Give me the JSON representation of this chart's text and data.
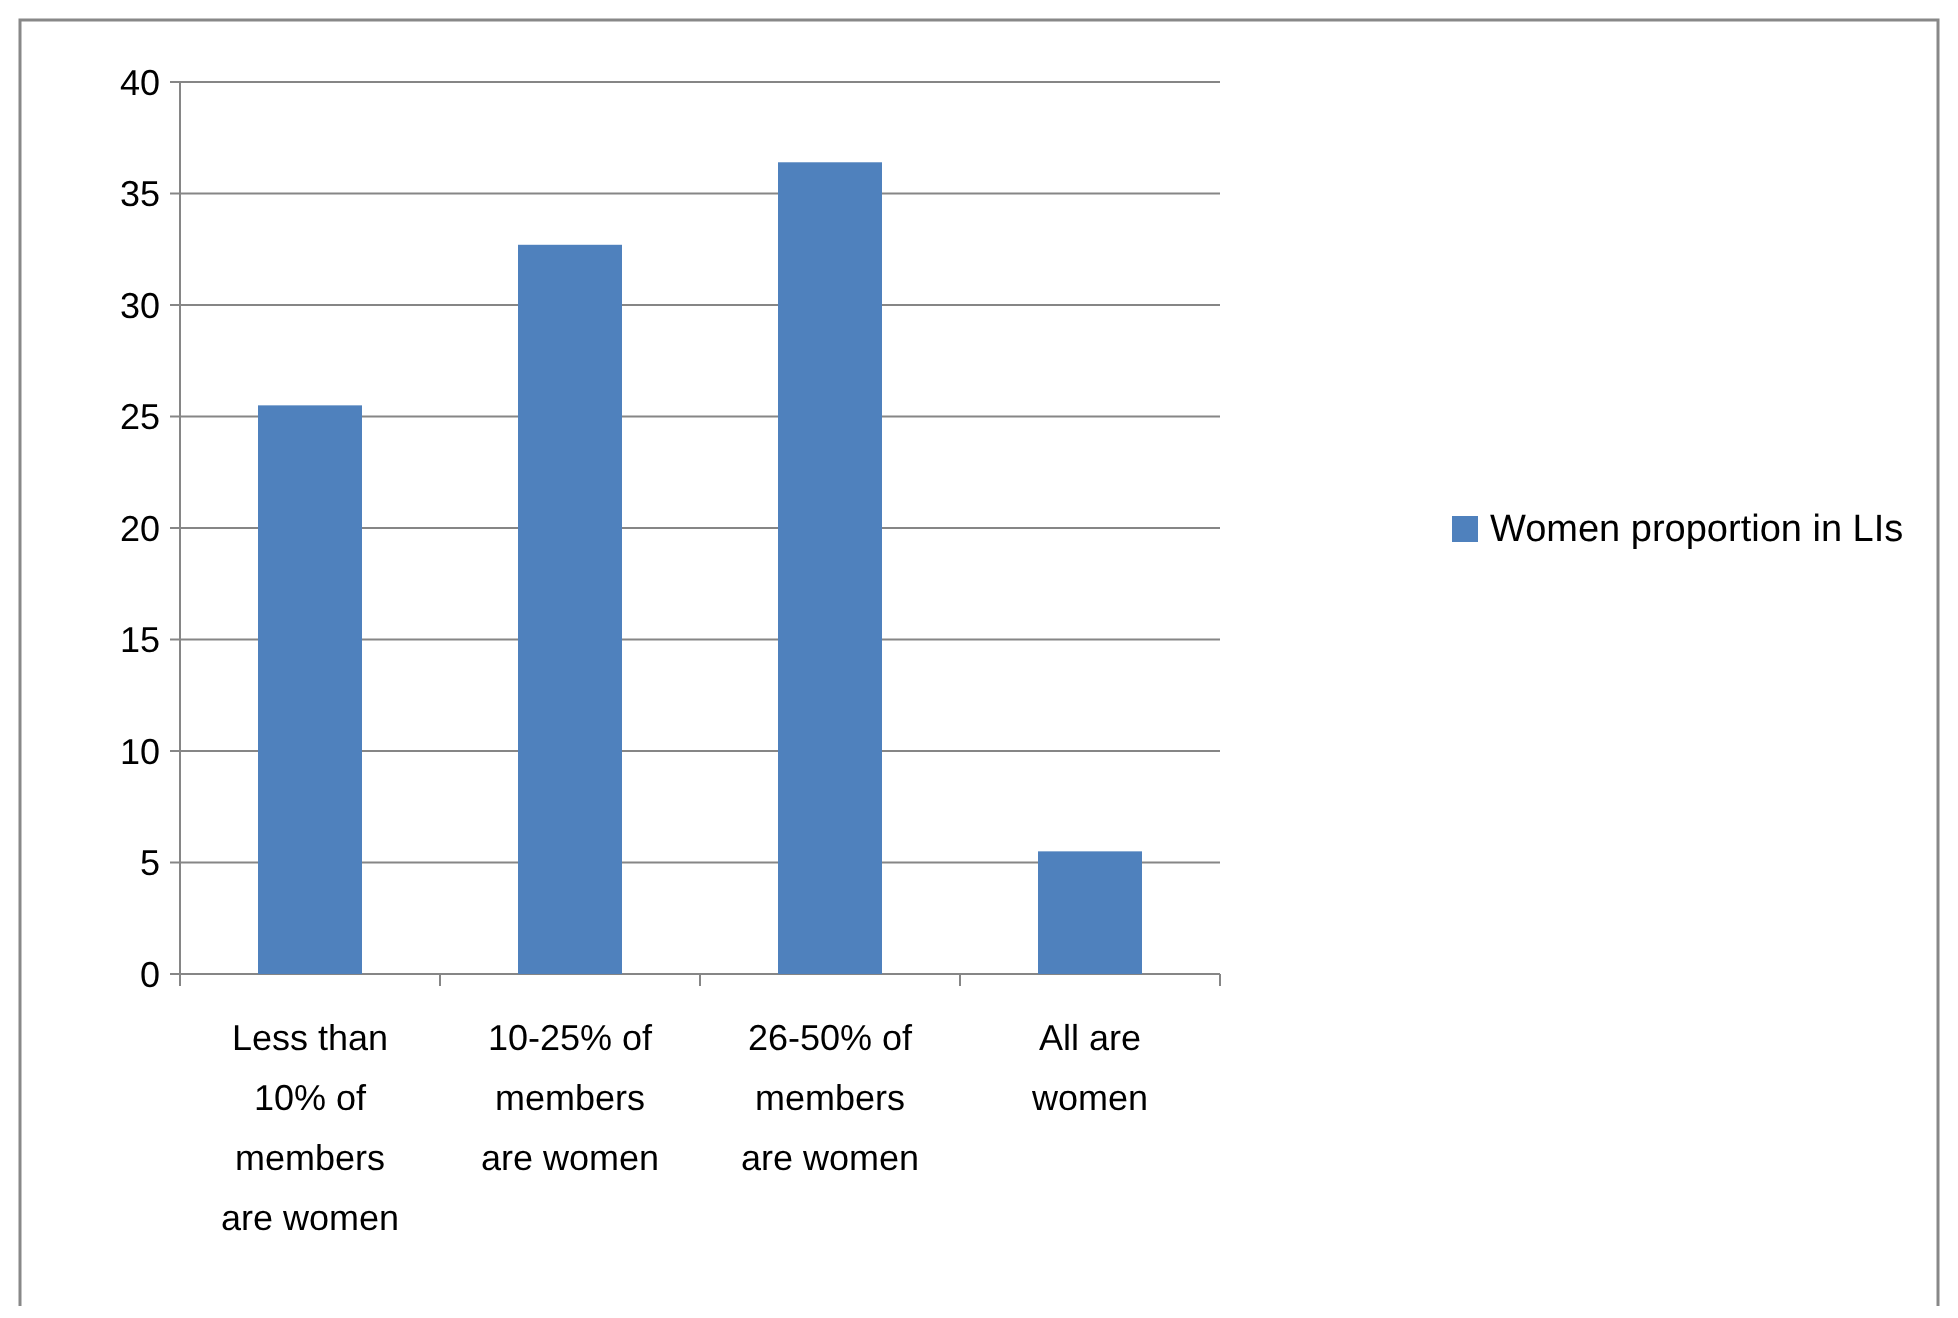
{
  "chart_data": {
    "type": "bar",
    "categories": [
      "Less than 10% of members are women",
      "10-25% of members are women",
      "26-50% of members are women",
      "All are women"
    ],
    "series": [
      {
        "name": "Women proportion in LIs",
        "color": "#4f81bd",
        "values": [
          25.5,
          32.7,
          36.4,
          5.5
        ]
      }
    ],
    "ylim": [
      0,
      40
    ],
    "yticks": [
      0,
      5,
      10,
      15,
      20,
      25,
      30,
      35,
      40
    ],
    "grid": "y",
    "legend": "right"
  }
}
